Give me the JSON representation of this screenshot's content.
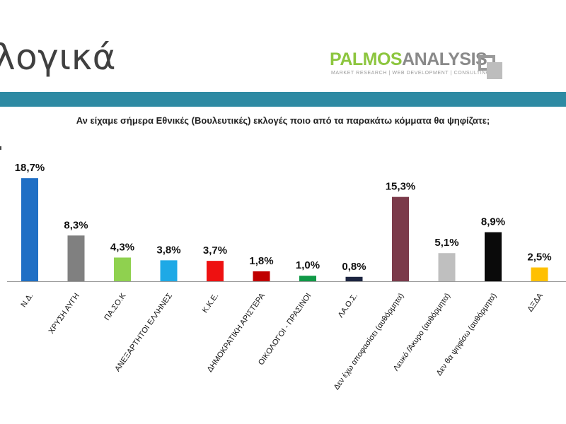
{
  "header": {
    "title": "λογικά",
    "logo": {
      "text_part1": "PALMOS",
      "text_part2": "ANALYSIS",
      "tagline": "MARKET RESEARCH | WEB DEVELOPMENT | CONSULTING"
    }
  },
  "colors": {
    "band": "#2e8aa3"
  },
  "chart_data": {
    "type": "bar",
    "title": "Αν είχαμε σήμερα Εθνικές (Βουλευτικές) εκλογές ποιο από τα παρακάτω κόμματα θα ψηφίζατε;",
    "categories": [
      "Ν.Δ.",
      "ΧΡΥΣΗ ΑΥΓΗ",
      "ΠΑ.ΣΟ.Κ",
      "ΑΝΕΞΑΡΤΗΤΟΙ ΕΛΛΗΝΕΣ",
      "Κ.Κ.Ε.",
      "ΔΗΜΟΚΡΑΤΙΚΗ ΑΡΙΣΤΕΡΑ",
      "ΟΙΚΟΛΟΓΟΙ - ΠΡΑΣΙΝΟΙ",
      "ΛΑ.Ο.Σ.",
      "Δεν έχω αποφασίσει (αυθόρμητα)",
      "Λευκό /Άκυρο (αυθόρμητα)",
      "Δεν θα ψηφίσω (αυθόρμητα)",
      "ΔΞΔΑ"
    ],
    "values": [
      18.7,
      8.3,
      4.3,
      3.8,
      3.7,
      1.8,
      1.0,
      0.8,
      15.3,
      5.1,
      8.9,
      2.5
    ],
    "labels": [
      "18,7%",
      "8,3%",
      "4,3%",
      "3,8%",
      "3,7%",
      "1,8%",
      "1,0%",
      "0,8%",
      "15,3%",
      "5,1%",
      "8,9%",
      "2,5%"
    ],
    "colors": [
      "#1f6fc5",
      "#808080",
      "#8fd14f",
      "#1ea9e6",
      "#ee1111",
      "#c00000",
      "#109947",
      "#1c2440",
      "#7b3a4a",
      "#bfbfbf",
      "#0a0a0a",
      "#ffc000"
    ],
    "ylim": [
      0,
      20
    ],
    "grid": false,
    "legend": "none"
  }
}
